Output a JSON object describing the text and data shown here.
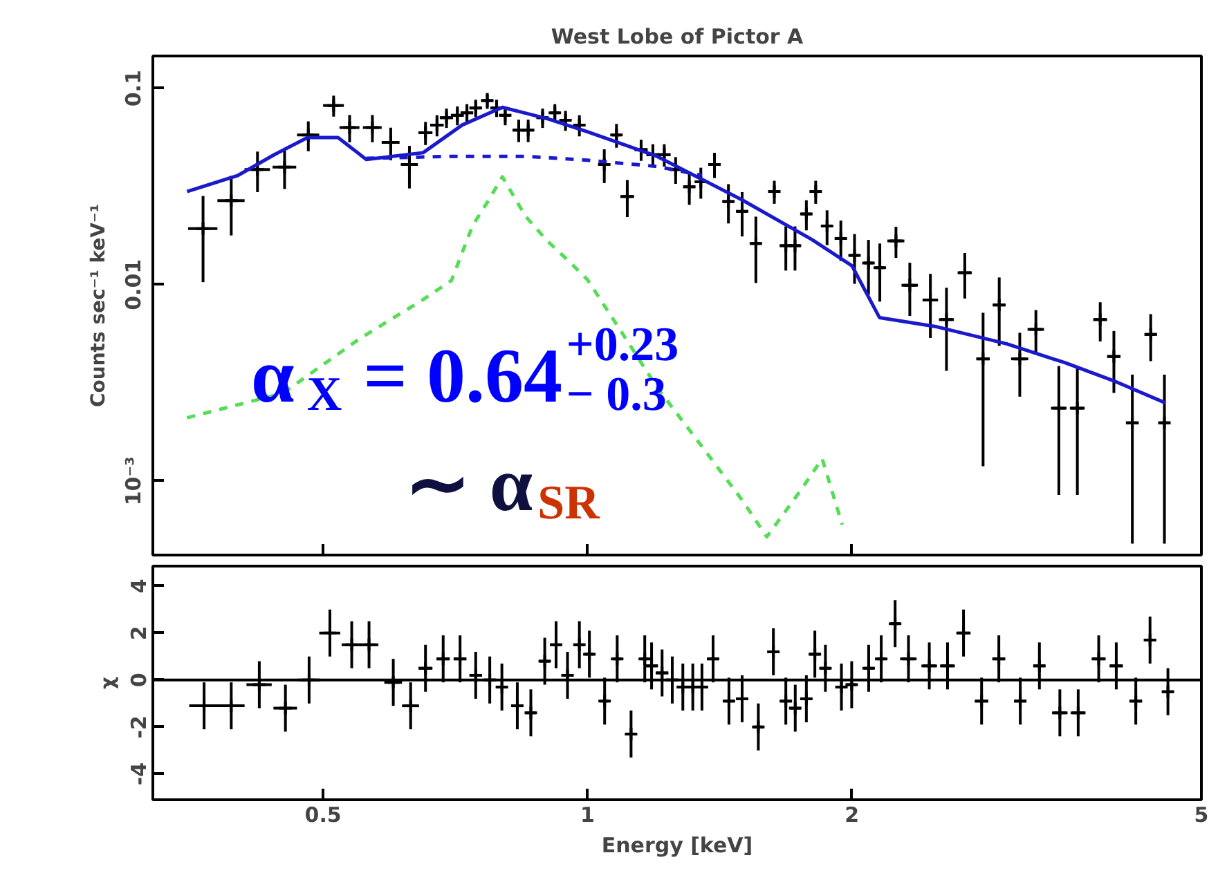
{
  "chart_data": [
    {
      "type": "scatter",
      "title": "West Lobe of Pictor A",
      "ylabel": "Counts sec⁻¹ keV⁻¹",
      "log": "xy",
      "tick_labels": "y",
      "xlim": [
        0.32,
        5
      ],
      "ylim": [
        0.00042,
        0.146
      ],
      "xticks": [
        0.5,
        1,
        2,
        5
      ],
      "yticks": [
        0.1,
        0.01,
        {
          "value": 0.001,
          "label": "10⁻³"
        }
      ],
      "annotations": [
        "α$_{X}$ = 0.64$^{+0.23}$$_{− 0.3}$",
        "∼ α$_{SR}$"
      ],
      "series": [
        {
          "type": "scatter",
          "marker": "cross",
          "color": "#000000",
          "x": [
            0.365,
            0.393,
            0.421,
            0.452,
            0.481,
            0.514,
            0.536,
            0.569,
            0.597,
            0.627,
            0.654,
            0.674,
            0.691,
            0.711,
            0.729,
            0.746,
            0.769,
            0.788,
            0.806,
            0.835,
            0.856,
            0.889,
            0.918,
            0.944,
            0.979,
            1.045,
            1.079,
            1.11,
            1.151,
            1.187,
            1.223,
            1.26,
            1.306,
            1.346,
            1.395,
            1.447,
            1.5,
            1.555,
            1.632,
            1.682,
            1.723,
            1.775,
            1.819,
            1.874,
            1.943,
            2.014,
            2.089,
            2.152,
            2.245,
            2.328,
            2.457,
            2.563,
            2.689,
            2.821,
            2.943,
            3.106,
            3.24,
            3.441,
            3.612,
            3.835,
            3.975,
            4.172,
            4.378,
            4.538
          ],
          "values": [
            0.0193,
            0.0268,
            0.0386,
            0.0397,
            0.0578,
            0.0817,
            0.0631,
            0.0631,
            0.053,
            0.0409,
            0.0594,
            0.0649,
            0.0708,
            0.0728,
            0.075,
            0.0794,
            0.0866,
            0.0794,
            0.0728,
            0.0612,
            0.0612,
            0.0708,
            0.075,
            0.0687,
            0.0649,
            0.0409,
            0.0578,
            0.0281,
            0.0487,
            0.0459,
            0.0459,
            0.0386,
            0.0315,
            0.0334,
            0.0409,
            0.0265,
            0.0236,
            0.0162,
            0.0298,
            0.0158,
            0.0158,
            0.0229,
            0.0298,
            0.0199,
            0.0172,
            0.0141,
            0.0129,
            0.0122,
            0.0167,
            0.00993,
            0.00835,
            0.00664,
            0.0115,
            0.00419,
            0.00788,
            0.00419,
            0.00592,
            0.00235,
            0.00235,
            0.00664,
            0.00431,
            0.00198,
            0.00558,
            0.00198
          ],
          "errors": [
            0.009,
            0.009,
            0.009,
            0.009,
            0.01,
            0.01,
            0.01,
            0.01,
            0.01,
            0.01,
            0.008,
            0.008,
            0.008,
            0.008,
            0.008,
            0.008,
            0.008,
            0.008,
            0.008,
            0.008,
            0.008,
            0.008,
            0.008,
            0.008,
            0.008,
            0.008,
            0.008,
            0.006,
            0.006,
            0.006,
            0.006,
            0.006,
            0.006,
            0.006,
            0.006,
            0.006,
            0.006,
            0.006,
            0.004,
            0.004,
            0.004,
            0.004,
            0.004,
            0.004,
            0.004,
            0.004,
            0.004,
            0.004,
            0.003,
            0.003,
            0.003,
            0.003,
            0.003,
            0.003,
            0.003,
            0.0015,
            0.0015,
            0.0015,
            0.0015,
            0.0015,
            0.0015,
            0.0015,
            0.0015,
            0.0015
          ],
          "xerrors": [
            0.014,
            0.014,
            0.014,
            0.014,
            0.014,
            0.014,
            0.014,
            0.014,
            0.014,
            0.014,
            0.012,
            0.012,
            0.012,
            0.012,
            0.012,
            0.012,
            0.012,
            0.012,
            0.012,
            0.012,
            0.012,
            0.012,
            0.012,
            0.012,
            0.012,
            0.012,
            0.012,
            0.02,
            0.02,
            0.02,
            0.02,
            0.02,
            0.02,
            0.02,
            0.02,
            0.02,
            0.02,
            0.02,
            0.025,
            0.025,
            0.025,
            0.025,
            0.025,
            0.025,
            0.025,
            0.025,
            0.025,
            0.025,
            0.05,
            0.05,
            0.05,
            0.05,
            0.05,
            0.05,
            0.05,
            0.07,
            0.07,
            0.07,
            0.07,
            0.07,
            0.07,
            0.07,
            0.07,
            0.07
          ]
        },
        {
          "type": "line",
          "line_style": "solid",
          "color": "#1a1acc",
          "x": [
            0.35,
            0.4,
            0.44,
            0.48,
            0.52,
            0.56,
            0.65,
            0.72,
            0.8,
            0.9,
            1.0,
            1.2,
            1.5,
            1.8,
            2.0,
            2.15,
            2.5,
            3.0,
            3.5,
            4.0,
            4.55
          ],
          "values": [
            0.0298,
            0.036,
            0.0459,
            0.0561,
            0.0561,
            0.0434,
            0.047,
            0.065,
            0.08,
            0.07,
            0.06,
            0.045,
            0.027,
            0.017,
            0.0125,
            0.0068,
            0.0061,
            0.005,
            0.004,
            0.0032,
            0.0025
          ]
        },
        {
          "type": "line",
          "line_style": "dashed",
          "color": "#1a1acc",
          "x": [
            0.56,
            0.7,
            0.85,
            1.0,
            1.2,
            1.35
          ],
          "values": [
            0.044,
            0.045,
            0.045,
            0.043,
            0.04,
            0.036
          ]
        },
        {
          "type": "line",
          "line_style": "dashed",
          "color": "#55dd55",
          "x": [
            0.35,
            0.45,
            0.55,
            0.65,
            0.7,
            0.74,
            0.77,
            0.8,
            0.85,
            0.9,
            0.95,
            1.0,
            1.1,
            1.2,
            1.35,
            1.5,
            1.6,
            1.75,
            1.85,
            1.95
          ],
          "values": [
            0.0021,
            0.0028,
            0.0053,
            0.0084,
            0.0105,
            0.02,
            0.0265,
            0.0354,
            0.0223,
            0.0167,
            0.0133,
            0.0106,
            0.0055,
            0.003,
            0.0015,
            0.0008,
            0.00052,
            0.0009,
            0.0013,
            0.0006
          ]
        }
      ]
    },
    {
      "type": "scatter",
      "marker": "cross",
      "xlabel": "Energy [keV]",
      "ylabel": "χ",
      "log": "x",
      "xlim": [
        0.32,
        5
      ],
      "ylim": [
        -5.1,
        4.85
      ],
      "xticks": [
        0.5,
        1,
        2,
        5
      ],
      "yticks": [
        -4,
        -2,
        0,
        2,
        4
      ],
      "ref_lines": [
        {
          "axis": "y",
          "value": 0,
          "color": "#000000"
        }
      ],
      "series": [
        {
          "color": "#000000",
          "x": [
            0.366,
            0.393,
            0.423,
            0.453,
            0.482,
            0.509,
            0.539,
            0.564,
            0.601,
            0.629,
            0.654,
            0.685,
            0.716,
            0.746,
            0.774,
            0.799,
            0.832,
            0.862,
            0.894,
            0.921,
            0.949,
            0.979,
            1.005,
            1.046,
            1.081,
            1.121,
            1.162,
            1.183,
            1.216,
            1.249,
            1.284,
            1.318,
            1.35,
            1.39,
            1.449,
            1.5,
            1.565,
            1.628,
            1.682,
            1.724,
            1.775,
            1.815,
            1.866,
            1.946,
            1.999,
            2.09,
            2.16,
            2.24,
            2.32,
            2.45,
            2.57,
            2.68,
            2.81,
            2.94,
            3.11,
            3.27,
            3.45,
            3.62,
            3.82,
            4.0,
            4.21,
            4.37,
            4.58
          ],
          "values": [
            -1.1,
            -1.1,
            -0.2,
            -1.2,
            0,
            2.0,
            1.5,
            1.5,
            -0.1,
            -1.1,
            0.5,
            0.9,
            0.9,
            0.2,
            0,
            -0.3,
            -1.1,
            -1.4,
            0.8,
            1.5,
            0.2,
            1.5,
            1.1,
            -0.9,
            0.9,
            -2.3,
            0.9,
            0.6,
            0.3,
            0,
            -0.3,
            -0.3,
            -0.3,
            0.9,
            -0.9,
            -0.8,
            -2.0,
            1.2,
            -0.9,
            -1.2,
            -0.8,
            1.1,
            0.5,
            -0.3,
            -0.2,
            0.5,
            0.9,
            2.4,
            0.9,
            0.6,
            0.6,
            2.0,
            -0.9,
            0.9,
            -0.9,
            0.6,
            -1.4,
            -1.4,
            0.9,
            0.6,
            -0.9,
            1.7,
            -0.5
          ],
          "errors": [
            1,
            1,
            1,
            1,
            1,
            1,
            1,
            1,
            1,
            1,
            1,
            1,
            1,
            1,
            1,
            1,
            1,
            1,
            1,
            1,
            1,
            1,
            1,
            1,
            1,
            1,
            1,
            1,
            1,
            1,
            1,
            1,
            1,
            1,
            1,
            1,
            1,
            1,
            1,
            1,
            1,
            1,
            1,
            1,
            1,
            1,
            1,
            1,
            1,
            1,
            1,
            1,
            1,
            1,
            1,
            1,
            1,
            1,
            1,
            1,
            1,
            1,
            1
          ],
          "xerrors": [
            0.014,
            0.014,
            0.014,
            0.014,
            0.014,
            0.014,
            0.014,
            0.014,
            0.014,
            0.014,
            0.012,
            0.012,
            0.012,
            0.012,
            0.012,
            0.012,
            0.012,
            0.012,
            0.012,
            0.012,
            0.012,
            0.012,
            0.012,
            0.012,
            0.012,
            0.012,
            0.012,
            0.02,
            0.02,
            0.02,
            0.02,
            0.02,
            0.02,
            0.02,
            0.02,
            0.02,
            0.02,
            0.02,
            0.025,
            0.025,
            0.025,
            0.025,
            0.025,
            0.025,
            0.025,
            0.025,
            0.025,
            0.025,
            0.05,
            0.05,
            0.05,
            0.05,
            0.05,
            0.05,
            0.05,
            0.05,
            0.07,
            0.07,
            0.07,
            0.07,
            0.07,
            0.07,
            0.07
          ]
        }
      ]
    }
  ]
}
